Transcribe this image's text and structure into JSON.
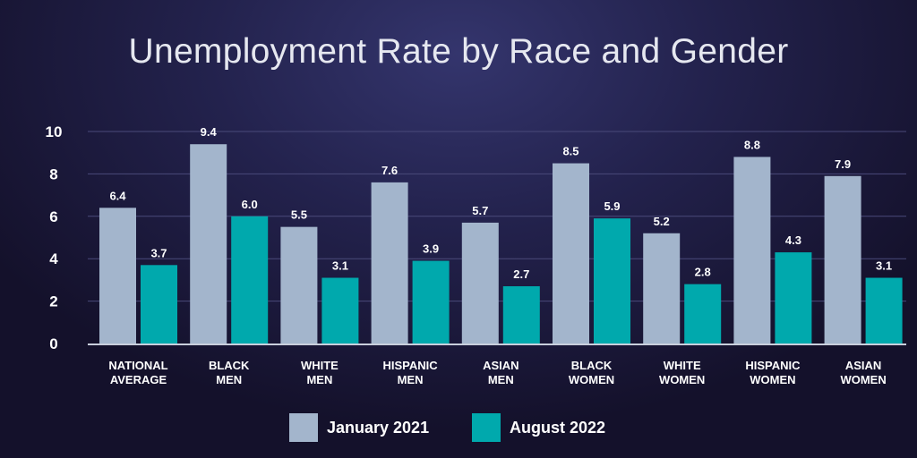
{
  "chart_data": {
    "type": "bar",
    "title": "Unemployment Rate by Race and Gender",
    "xlabel": "",
    "ylabel": "",
    "ylim": [
      0,
      10
    ],
    "yticks": [
      0,
      2,
      4,
      6,
      8,
      10
    ],
    "grid": true,
    "legend_position": "bottom-center",
    "categories": [
      [
        "NATIONAL",
        "AVERAGE"
      ],
      [
        "BLACK",
        "MEN"
      ],
      [
        "WHITE",
        "MEN"
      ],
      [
        "HISPANIC",
        "MEN"
      ],
      [
        "ASIAN",
        "MEN"
      ],
      [
        "BLACK",
        "WOMEN"
      ],
      [
        "WHITE",
        "WOMEN"
      ],
      [
        "HISPANIC",
        "WOMEN"
      ],
      [
        "ASIAN",
        "WOMEN"
      ]
    ],
    "series": [
      {
        "name": "January 2021",
        "color": "#a3b5cc",
        "values": [
          6.4,
          9.4,
          5.5,
          7.6,
          5.7,
          8.5,
          5.2,
          8.8,
          7.9
        ],
        "labels": [
          "6.4",
          "9.4",
          "5.5",
          "7.6",
          "5.7",
          "8.5",
          "5.2",
          "8.8",
          "7.9"
        ]
      },
      {
        "name": "August 2022",
        "color": "#00a9ad",
        "values": [
          3.7,
          6.0,
          3.1,
          3.9,
          2.7,
          5.9,
          2.8,
          4.3,
          3.1
        ],
        "labels": [
          "3.7",
          "6.0",
          "3.1",
          "3.9",
          "2.7",
          "5.9",
          "2.8",
          "4.3",
          "3.1"
        ]
      }
    ]
  }
}
